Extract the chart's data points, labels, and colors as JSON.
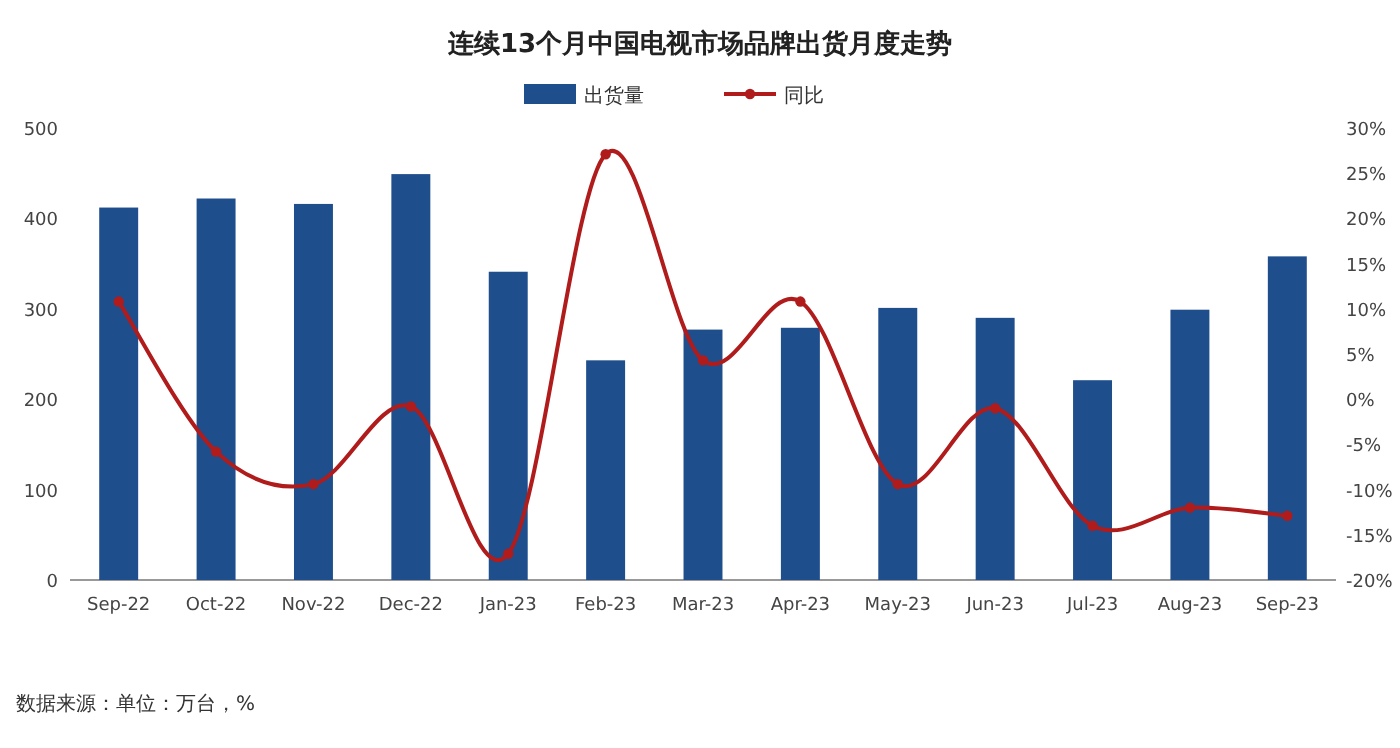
{
  "chart_data": {
    "type": "bar",
    "title": "连续13个月中国电视市场品牌出货月度走势",
    "categories": [
      "Sep-22",
      "Oct-22",
      "Nov-22",
      "Dec-22",
      "Jan-23",
      "Feb-23",
      "Mar-23",
      "Apr-23",
      "May-23",
      "Jun-23",
      "Jul-23",
      "Aug-23",
      "Sep-23"
    ],
    "series": [
      {
        "name": "出货量",
        "color": "#1e4e8c",
        "values": [
          412,
          422,
          416,
          449,
          341,
          243,
          277,
          279,
          301,
          290,
          221,
          299,
          358
        ]
      },
      {
        "name": "同比",
        "type": "line",
        "axis": "y2",
        "color": "#b01c1c",
        "marker": "circle",
        "values": [
          10.8,
          -5.8,
          -9.4,
          -0.8,
          -17.1,
          27.1,
          4.3,
          10.8,
          -9.4,
          -1.0,
          -14.0,
          -12.0,
          -12.9
        ]
      }
    ],
    "ylim": [
      0,
      500
    ],
    "yticks": [
      0,
      100,
      200,
      300,
      400,
      500
    ],
    "y2lim": [
      -20,
      30
    ],
    "y2ticks": [
      {
        "value": -20,
        "label": "-20%"
      },
      {
        "value": -15,
        "label": "-15%"
      },
      {
        "value": -10,
        "label": "-10%"
      },
      {
        "value": -5,
        "label": "-5%"
      },
      {
        "value": 0,
        "label": "0%"
      },
      {
        "value": 5,
        "label": "5%"
      },
      {
        "value": 10,
        "label": "10%"
      },
      {
        "value": 15,
        "label": "15%"
      },
      {
        "value": 20,
        "label": "20%"
      },
      {
        "value": 25,
        "label": "25%"
      },
      {
        "value": 30,
        "label": "30%"
      }
    ],
    "grid": false,
    "legend": "top",
    "annotations": [
      "数据来源：单位：万台，%"
    ]
  }
}
